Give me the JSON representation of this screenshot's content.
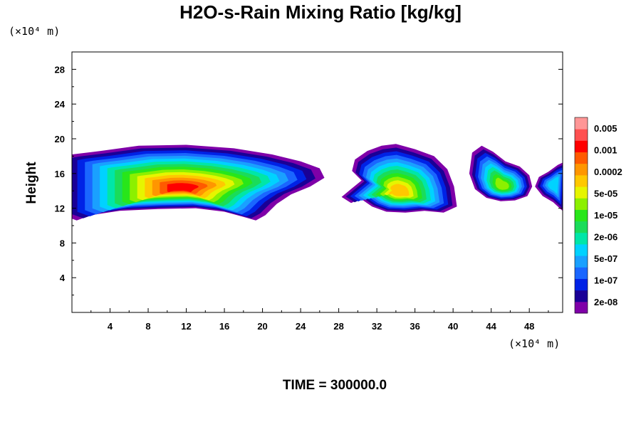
{
  "title": "H2O-s-Rain Mixing Ratio [kg/kg]",
  "time_label": "TIME = 300000.0",
  "chart_data": {
    "type": "heatmap",
    "title": "H2O-s-Rain Mixing Ratio [kg/kg]",
    "xlabel": "",
    "ylabel": "Height",
    "x_unit": "(×10⁴ m)",
    "y_unit": "(×10⁴ m)",
    "xlim": [
      0,
      51.5
    ],
    "ylim": [
      0,
      30
    ],
    "x_ticks": [
      4,
      8,
      12,
      16,
      20,
      24,
      28,
      32,
      36,
      40,
      44,
      48
    ],
    "y_ticks": [
      4,
      8,
      12,
      16,
      20,
      24,
      28
    ],
    "colorbar": {
      "labels": [
        "0.005",
        "0.001",
        "0.0002",
        "5e-05",
        "1e-05",
        "2e-06",
        "5e-07",
        "1e-07",
        "2e-08"
      ],
      "colors": [
        "#7f00a8",
        "#1a0096",
        "#0022e6",
        "#1a66ff",
        "#1aa0ff",
        "#00d2ff",
        "#00e6a8",
        "#1adc5a",
        "#28e61a",
        "#8cf000",
        "#e6f500",
        "#ffc800",
        "#ff9600",
        "#ff5a00",
        "#ff0000",
        "#ff5050",
        "#ff9696"
      ]
    },
    "cloud_regions": [
      {
        "name": "main",
        "x_range": [
          0,
          26.5
        ],
        "y_range": [
          10.5,
          19.2
        ],
        "core_level": 0.001
      },
      {
        "name": "middle",
        "x_range": [
          28.3,
          40.5
        ],
        "y_range": [
          11.5,
          19.5
        ],
        "core_level": 0.0002
      },
      {
        "name": "right",
        "x_range": [
          41.5,
          48.5
        ],
        "y_range": [
          12.8,
          19.2
        ],
        "core_level": 1e-05
      },
      {
        "name": "edge",
        "x_range": [
          48.5,
          51.5
        ],
        "y_range": [
          11.5,
          17.5
        ],
        "core_level": 5e-07
      }
    ]
  }
}
